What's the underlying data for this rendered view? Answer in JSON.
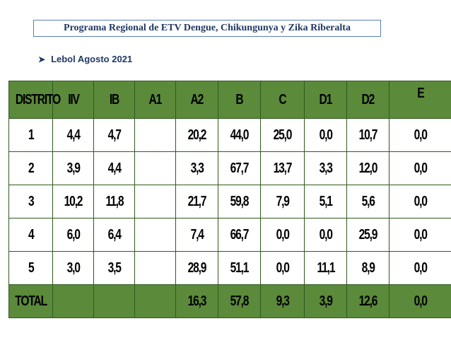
{
  "title": "Programa Regional de ETV Dengue, Chikungunya y Zika Riberalta",
  "subtitle": "Lebol Agosto 2021",
  "table": {
    "headers": [
      "DISTRITO",
      "IIV",
      "IB",
      "A1",
      "A2",
      "B",
      "C",
      "D1",
      "D2",
      "E"
    ],
    "rows": [
      [
        "1",
        "4,4",
        "4,7",
        "",
        "20,2",
        "44,0",
        "25,0",
        "0,0",
        "10,7",
        "0,0"
      ],
      [
        "2",
        "3,9",
        "4,4",
        "",
        "3,3",
        "67,7",
        "13,7",
        "3,3",
        "12,0",
        "0,0"
      ],
      [
        "3",
        "10,2",
        "11,8",
        "",
        "21,7",
        "59,8",
        "7,9",
        "5,1",
        "5,6",
        "0,0"
      ],
      [
        "4",
        "6,0",
        "6,4",
        "",
        "7,4",
        "66,7",
        "0,0",
        "0,0",
        "25,9",
        "0,0"
      ],
      [
        "5",
        "3,0",
        "3,5",
        "",
        "28,9",
        "51,1",
        "0,0",
        "11,1",
        "8,9",
        "0,0"
      ]
    ],
    "total": [
      "TOTAL",
      "",
      "",
      "",
      "16,3",
      "57,8",
      "9,3",
      "3,9",
      "12,6",
      "0,0"
    ]
  },
  "colors": {
    "header_bg": "#5b8a3a",
    "title_text": "#1f3864",
    "border": "#2f5a1e"
  }
}
